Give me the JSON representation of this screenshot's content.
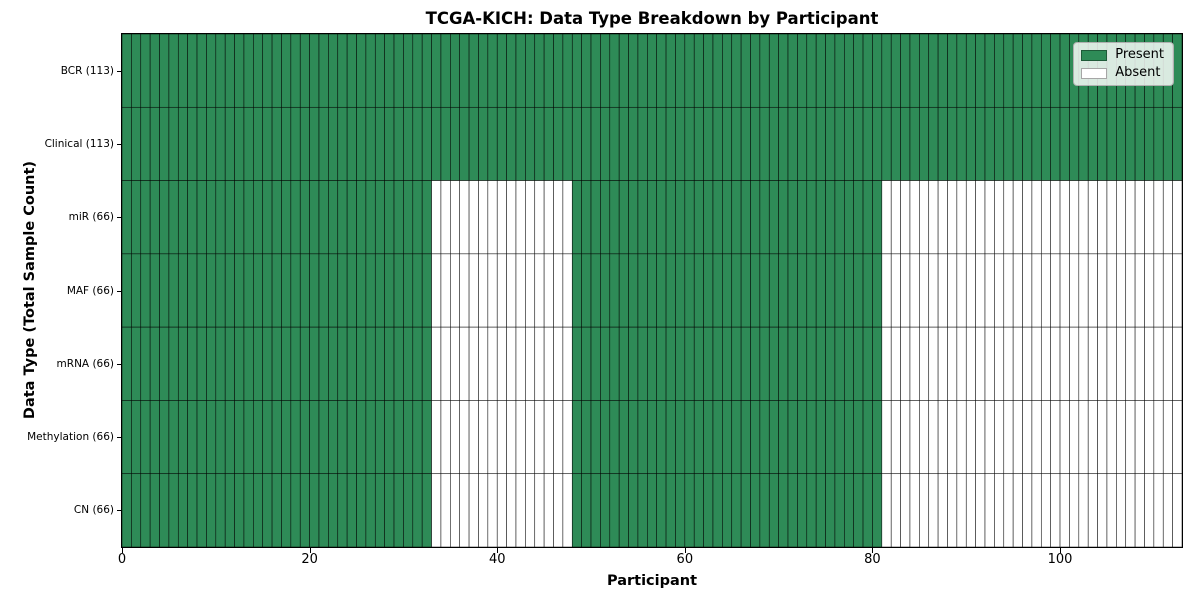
{
  "chart_data": {
    "type": "heatmap",
    "title": "TCGA-KICH: Data Type Breakdown by Participant",
    "xlabel": "Participant",
    "ylabel": "Data Type (Total Sample Count)",
    "xlim": [
      0,
      113
    ],
    "x_ticks": [
      0,
      20,
      40,
      60,
      80,
      100
    ],
    "n_participants": 113,
    "grid": false,
    "legend_position": "upper right",
    "rows": [
      {
        "label": "BCR (113)",
        "total_samples": 113,
        "present_ranges": [
          [
            0,
            113
          ]
        ]
      },
      {
        "label": "Clinical (113)",
        "total_samples": 113,
        "present_ranges": [
          [
            0,
            113
          ]
        ]
      },
      {
        "label": "miR (66)",
        "total_samples": 66,
        "present_ranges": [
          [
            0,
            33
          ],
          [
            48,
            81
          ]
        ]
      },
      {
        "label": "MAF (66)",
        "total_samples": 66,
        "present_ranges": [
          [
            0,
            33
          ],
          [
            48,
            81
          ]
        ]
      },
      {
        "label": "mRNA (66)",
        "total_samples": 66,
        "present_ranges": [
          [
            0,
            33
          ],
          [
            48,
            81
          ]
        ]
      },
      {
        "label": "Methylation (66)",
        "total_samples": 66,
        "present_ranges": [
          [
            0,
            33
          ],
          [
            48,
            81
          ]
        ]
      },
      {
        "label": "CN (66)",
        "total_samples": 66,
        "present_ranges": [
          [
            0,
            33
          ],
          [
            48,
            81
          ]
        ]
      }
    ],
    "legend": [
      {
        "label": "Present",
        "color": "#2e8b57"
      },
      {
        "label": "Absent",
        "color": "#ffffff"
      }
    ],
    "colors": {
      "present": "#2e8b57",
      "absent": "#ffffff",
      "cell_edge": "#000000",
      "frame": "#000000",
      "background": "#ffffff"
    }
  }
}
